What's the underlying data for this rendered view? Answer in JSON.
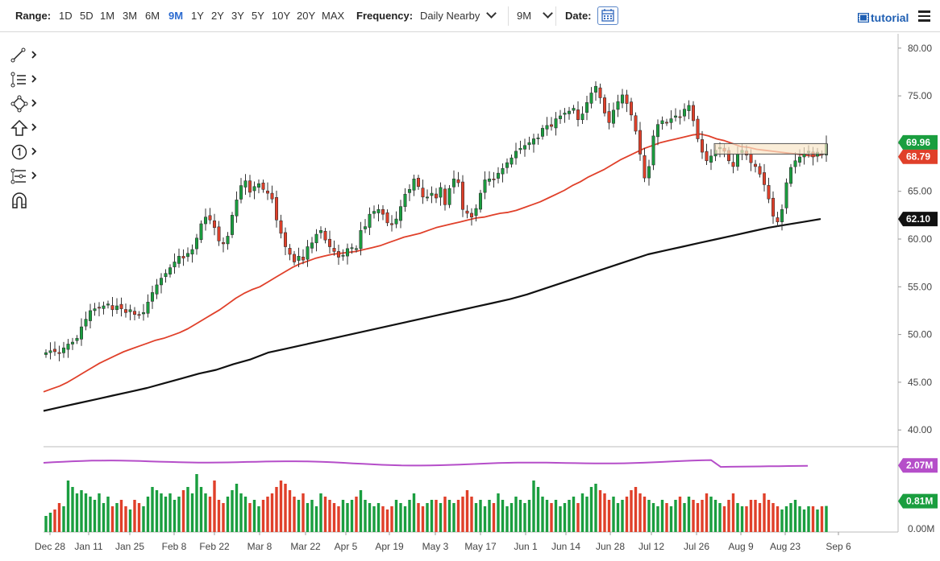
{
  "toolbar": {
    "range_label": "Range:",
    "ranges": [
      "1D",
      "5D",
      "1M",
      "3M",
      "6M",
      "9M",
      "1Y",
      "2Y",
      "3Y",
      "5Y",
      "10Y",
      "20Y",
      "MAX"
    ],
    "active_range": "9M",
    "frequency_label": "Frequency:",
    "frequency_value": "Daily Nearby",
    "period_value": "9M",
    "date_label": "Date:",
    "tutorial_label": "tutorial"
  },
  "drawing_tools": [
    "trend-line-icon",
    "fib-levels-icon",
    "shapes-icon",
    "arrow-up-icon",
    "number-marker-icon",
    "pattern-icon",
    "magnet-icon"
  ],
  "colors": {
    "up": "#1a9e3f",
    "down": "#e0402a",
    "ma50": "#e0402a",
    "ma200": "#111111",
    "volume_avg": "#b54ec9",
    "box_fill": "#f8e6c8",
    "box_stroke": "#555555"
  },
  "chart_data": {
    "type": "candlestick",
    "x_tick_labels": [
      "Dec 28",
      "Jan 11",
      "Jan 25",
      "Feb 8",
      "Feb 22",
      "Mar 8",
      "Mar 22",
      "Apr 5",
      "Apr 19",
      "May 3",
      "May 17",
      "Jun 1",
      "Jun 14",
      "Jun 28",
      "Jul 12",
      "Jul 26",
      "Aug 9",
      "Aug 23",
      "Sep 6"
    ],
    "y_ticks": [
      40,
      45,
      50,
      55,
      60,
      65,
      70,
      75,
      80
    ],
    "y_tick_labels": [
      "40.00",
      "45.00",
      "50.00",
      "55.00",
      "60.00",
      "65.00",
      "70.00",
      "75.00",
      "80.00"
    ],
    "ylim": [
      38.5,
      81.5
    ],
    "close": [
      48.1,
      48.3,
      48.2,
      48.0,
      48.6,
      49.0,
      49.2,
      49.6,
      50.8,
      51.6,
      52.5,
      52.7,
      52.8,
      53.0,
      53.2,
      52.6,
      53.0,
      52.7,
      52.3,
      52.6,
      52.1,
      52.0,
      52.3,
      53.4,
      54.4,
      55.2,
      55.9,
      56.4,
      57.0,
      57.6,
      58.2,
      58.0,
      58.5,
      58.9,
      60.1,
      61.6,
      62.3,
      62.0,
      61.2,
      59.8,
      59.5,
      60.3,
      62.5,
      64.1,
      65.6,
      66.1,
      64.9,
      65.5,
      65.8,
      65.2,
      64.8,
      64.2,
      62.0,
      60.6,
      59.2,
      58.4,
      57.6,
      58.2,
      57.8,
      59.2,
      59.6,
      60.5,
      60.9,
      59.9,
      59.2,
      58.7,
      58.1,
      58.3,
      59.0,
      59.1,
      59.0,
      60.9,
      61.3,
      62.6,
      62.9,
      63.1,
      62.6,
      61.7,
      61.5,
      62.1,
      63.4,
      64.7,
      65.2,
      66.3,
      65.5,
      64.4,
      64.4,
      64.8,
      64.3,
      65.4,
      63.6,
      65.3,
      66.3,
      65.9,
      63.1,
      62.7,
      62.3,
      63.2,
      64.8,
      66.2,
      66.3,
      66.2,
      66.9,
      67.4,
      68.0,
      68.5,
      69.2,
      69.5,
      69.8,
      70.1,
      70.5,
      70.6,
      71.6,
      71.9,
      71.8,
      72.6,
      72.9,
      73.2,
      73.4,
      73.7,
      72.5,
      73.1,
      74.3,
      75.3,
      76.0,
      74.8,
      73.2,
      72.2,
      73.5,
      74.4,
      75.1,
      74.2,
      73.0,
      71.3,
      68.9,
      66.4,
      67.6,
      70.8,
      72.0,
      72.4,
      72.2,
      72.6,
      72.9,
      72.8,
      73.6,
      74.0,
      72.4,
      70.5,
      69.1,
      68.2,
      68.7,
      69.3,
      69.6,
      69.2,
      68.2,
      67.6,
      68.9,
      69.3,
      68.8,
      68.0,
      67.6,
      66.8,
      65.7,
      64.2,
      62.4,
      61.8,
      63.1,
      65.9,
      67.5,
      68.2,
      68.6,
      68.9,
      69.2,
      68.6,
      69.1,
      68.8,
      69.96
    ],
    "ma50": [
      44.0,
      44.3,
      44.6,
      45.0,
      45.5,
      46.0,
      46.5,
      47.0,
      47.4,
      47.8,
      48.2,
      48.5,
      48.8,
      49.1,
      49.4,
      49.6,
      49.9,
      50.2,
      50.6,
      51.1,
      51.6,
      52.1,
      52.6,
      53.2,
      53.8,
      54.3,
      54.7,
      55.0,
      55.5,
      56.0,
      56.5,
      57.0,
      57.4,
      57.7,
      58.0,
      58.2,
      58.4,
      58.5,
      58.6,
      58.7,
      58.9,
      59.1,
      59.3,
      59.6,
      59.9,
      60.2,
      60.4,
      60.6,
      60.9,
      61.2,
      61.4,
      61.6,
      61.8,
      62.0,
      62.2,
      62.3,
      62.5,
      62.7,
      62.8,
      63.0,
      63.3,
      63.6,
      63.9,
      64.3,
      64.7,
      65.1,
      65.6,
      66.0,
      66.5,
      66.9,
      67.3,
      67.8,
      68.3,
      68.7,
      69.1,
      69.5,
      69.8,
      70.1,
      70.3,
      70.5,
      70.7,
      70.9,
      71.0,
      70.8,
      70.5,
      70.3,
      70.0,
      69.7,
      69.6,
      69.4,
      69.3,
      69.2,
      69.1,
      69.0,
      68.9,
      68.8,
      68.7,
      68.79
    ],
    "ma200": [
      42.0,
      42.4,
      42.8,
      43.2,
      43.6,
      44.0,
      44.4,
      44.9,
      45.4,
      45.9,
      46.3,
      46.9,
      47.4,
      48.1,
      48.5,
      48.9,
      49.3,
      49.7,
      50.1,
      50.5,
      50.9,
      51.3,
      51.7,
      52.1,
      52.5,
      52.9,
      53.3,
      53.7,
      54.2,
      54.8,
      55.4,
      56.0,
      56.6,
      57.2,
      57.8,
      58.4,
      58.8,
      59.2,
      59.6,
      60.0,
      60.4,
      60.8,
      61.2,
      61.5,
      61.8,
      62.1
    ],
    "hbox": [
      68.9,
      70.0
    ],
    "volume_labels": [
      "0.00M",
      "0.81M",
      "2.07M"
    ],
    "volume_avg_level": 2.07,
    "volume_last": 0.81,
    "volume": [
      0.5,
      0.6,
      0.7,
      0.9,
      0.8,
      1.6,
      1.4,
      1.2,
      1.3,
      1.2,
      1.1,
      1.0,
      1.2,
      0.9,
      1.1,
      0.8,
      0.9,
      1.0,
      0.8,
      0.7,
      1.0,
      0.9,
      0.8,
      1.1,
      1.4,
      1.3,
      1.2,
      1.1,
      1.2,
      1.0,
      1.1,
      1.3,
      1.4,
      1.2,
      1.8,
      1.4,
      1.2,
      1.1,
      1.6,
      1.0,
      0.9,
      1.1,
      1.3,
      1.5,
      1.2,
      1.1,
      0.9,
      1.0,
      0.8,
      1.0,
      1.1,
      1.2,
      1.4,
      1.6,
      1.5,
      1.3,
      1.1,
      1.0,
      1.2,
      0.9,
      1.0,
      0.8,
      1.2,
      1.1,
      1.0,
      0.9,
      0.8,
      1.0,
      0.9,
      1.0,
      1.1,
      1.3,
      1.0,
      0.9,
      0.8,
      0.9,
      0.8,
      0.7,
      0.8,
      1.0,
      0.9,
      0.8,
      1.0,
      1.2,
      0.9,
      0.8,
      0.9,
      1.0,
      1.0,
      0.9,
      1.1,
      1.0,
      0.9,
      1.0,
      1.1,
      1.3,
      1.1,
      0.9,
      1.0,
      0.8,
      1.0,
      0.9,
      1.2,
      1.0,
      0.8,
      0.9,
      1.1,
      1.0,
      0.9,
      1.0,
      1.6,
      1.4,
      1.1,
      1.0,
      0.9,
      1.0,
      0.8,
      0.9,
      1.0,
      1.1,
      0.9,
      1.2,
      1.1,
      1.4,
      1.5,
      1.3,
      1.2,
      1.0,
      1.1,
      0.9,
      1.0,
      1.1,
      1.3,
      1.4,
      1.2,
      1.1,
      1.0,
      0.9,
      0.8,
      1.0,
      0.9,
      0.8,
      1.0,
      1.1,
      0.9,
      1.1,
      1.0,
      0.9,
      1.0,
      1.2,
      1.1,
      1.0,
      0.9,
      0.8,
      1.0,
      1.2,
      0.9,
      0.8,
      0.8,
      1.0,
      1.0,
      0.9,
      1.2,
      1.0,
      0.9,
      0.8,
      0.7,
      0.8,
      0.9,
      1.0,
      0.8,
      0.7,
      0.8,
      0.8,
      0.7,
      0.8,
      0.81
    ],
    "last_price": "69.96",
    "ma50_label": "68.79",
    "ma200_label": "62.10"
  }
}
